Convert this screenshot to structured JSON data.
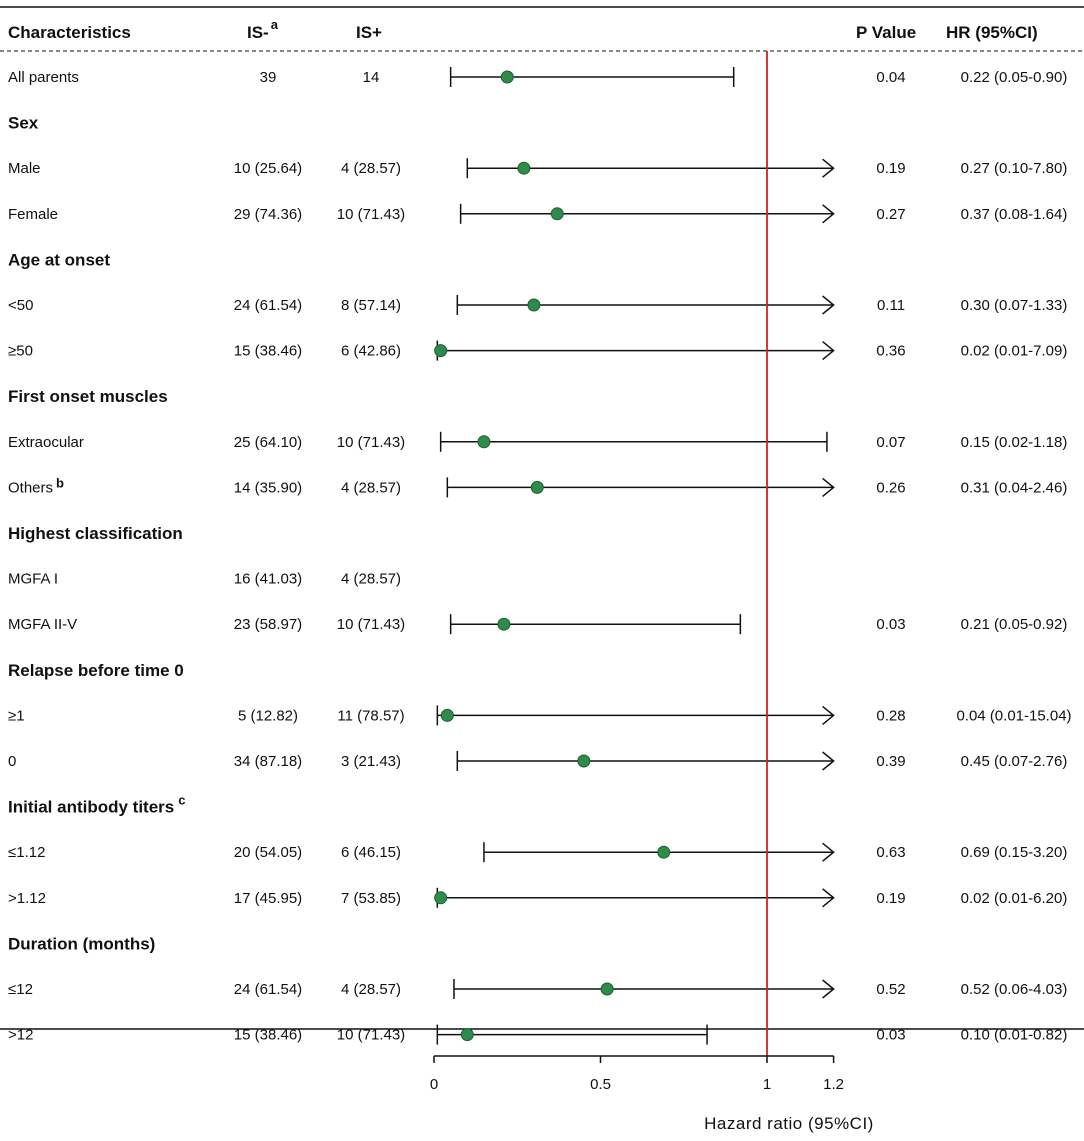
{
  "chart_data": {
    "type": "forest",
    "title": "",
    "columns": {
      "characteristics": "Characteristics",
      "is_minus": "IS-",
      "is_minus_sup": "a",
      "is_plus": "IS+",
      "p_value": "P Value",
      "hr": "HR (95%CI)"
    },
    "xlabel": "Hazard ratio (95%CI)",
    "xlim": [
      0,
      1.2
    ],
    "xticks": [
      {
        "value": 0,
        "label": "0"
      },
      {
        "value": 0.5,
        "label": "0.5"
      },
      {
        "value": 1,
        "label": "1"
      },
      {
        "value": 1.2,
        "label": "1.2"
      }
    ],
    "reference_line": 1,
    "rows": [
      {
        "label": "All parents",
        "is_minus": "39",
        "is_plus": "14",
        "hr": 0.22,
        "lo": 0.05,
        "hi": 0.9,
        "p": "0.04",
        "hr_text": "0.22 (0.05-0.90)"
      },
      {
        "section": "Sex"
      },
      {
        "label": "Male",
        "is_minus": "10 (25.64)",
        "is_plus": "4 (28.57)",
        "hr": 0.27,
        "lo": 0.1,
        "hi": 7.8,
        "p": "0.19",
        "hr_text": "0.27 (0.10-7.80)"
      },
      {
        "label": "Female",
        "is_minus": "29 (74.36)",
        "is_plus": "10 (71.43)",
        "hr": 0.37,
        "lo": 0.08,
        "hi": 1.64,
        "p": "0.27",
        "hr_text": "0.37 (0.08-1.64)"
      },
      {
        "section": "Age at onset"
      },
      {
        "label": "<50",
        "is_minus": "24 (61.54)",
        "is_plus": "8 (57.14)",
        "hr": 0.3,
        "lo": 0.07,
        "hi": 1.33,
        "p": "0.11",
        "hr_text": "0.30 (0.07-1.33)"
      },
      {
        "label": "≥50",
        "is_minus": "15 (38.46)",
        "is_plus": "6 (42.86)",
        "hr": 0.02,
        "lo": 0.01,
        "hi": 7.09,
        "p": "0.36",
        "hr_text": "0.02 (0.01-7.09)"
      },
      {
        "section": "First onset muscles"
      },
      {
        "label": "Extraocular",
        "is_minus": "25 (64.10)",
        "is_plus": "10 (71.43)",
        "hr": 0.15,
        "lo": 0.02,
        "hi": 1.18,
        "p": "0.07",
        "hr_text": "0.15 (0.02-1.18)"
      },
      {
        "label": "Others",
        "sup": "b",
        "is_minus": "14 (35.90)",
        "is_plus": "4 (28.57)",
        "hr": 0.31,
        "lo": 0.04,
        "hi": 2.46,
        "p": "0.26",
        "hr_text": "0.31 (0.04-2.46)"
      },
      {
        "section": "Highest classification"
      },
      {
        "label": "MGFA I",
        "is_minus": "16 (41.03)",
        "is_plus": "4 (28.57)"
      },
      {
        "label": "MGFA II-V",
        "is_minus": "23 (58.97)",
        "is_plus": "10 (71.43)",
        "hr": 0.21,
        "lo": 0.05,
        "hi": 0.92,
        "p": "0.03",
        "hr_text": "0.21 (0.05-0.92)"
      },
      {
        "section": "Relapse before time 0"
      },
      {
        "label": "≥1",
        "is_minus": "5 (12.82)",
        "is_plus": "11 (78.57)",
        "hr": 0.04,
        "lo": 0.01,
        "hi": 15.04,
        "p": "0.28",
        "hr_text": "0.04 (0.01-15.04)"
      },
      {
        "label": "0",
        "is_minus": "34 (87.18)",
        "is_plus": "3 (21.43)",
        "hr": 0.45,
        "lo": 0.07,
        "hi": 2.76,
        "p": "0.39",
        "hr_text": "0.45 (0.07-2.76)"
      },
      {
        "section": "Initial antibody titers",
        "sup": "c"
      },
      {
        "label": "≤1.12",
        "is_minus": "20 (54.05)",
        "is_plus": "6 (46.15)",
        "hr": 0.69,
        "lo": 0.15,
        "hi": 3.2,
        "p": "0.63",
        "hr_text": "0.69 (0.15-3.20)"
      },
      {
        "label": ">1.12",
        "is_minus": "17 (45.95)",
        "is_plus": "7 (53.85)",
        "hr": 0.02,
        "lo": 0.01,
        "hi": 6.2,
        "p": "0.19",
        "hr_text": "0.02 (0.01-6.20)"
      },
      {
        "section": "Duration (months)"
      },
      {
        "label": "≤12",
        "is_minus": "24 (61.54)",
        "is_plus": "4 (28.57)",
        "hr": 0.52,
        "lo": 0.06,
        "hi": 4.03,
        "p": "0.52",
        "hr_text": "0.52 (0.06-4.03)"
      },
      {
        "label": ">12",
        "is_minus": "15 (38.46)",
        "is_plus": "10 (71.43)",
        "hr": 0.1,
        "lo": 0.01,
        "hi": 0.82,
        "p": "0.03",
        "hr_text": "0.10 (0.01-0.82)"
      }
    ],
    "colors": {
      "marker_fill": "#2e8b4a",
      "marker_stroke": "#1f5e33",
      "reference_line": "#cc2222",
      "line": "#111111"
    }
  }
}
